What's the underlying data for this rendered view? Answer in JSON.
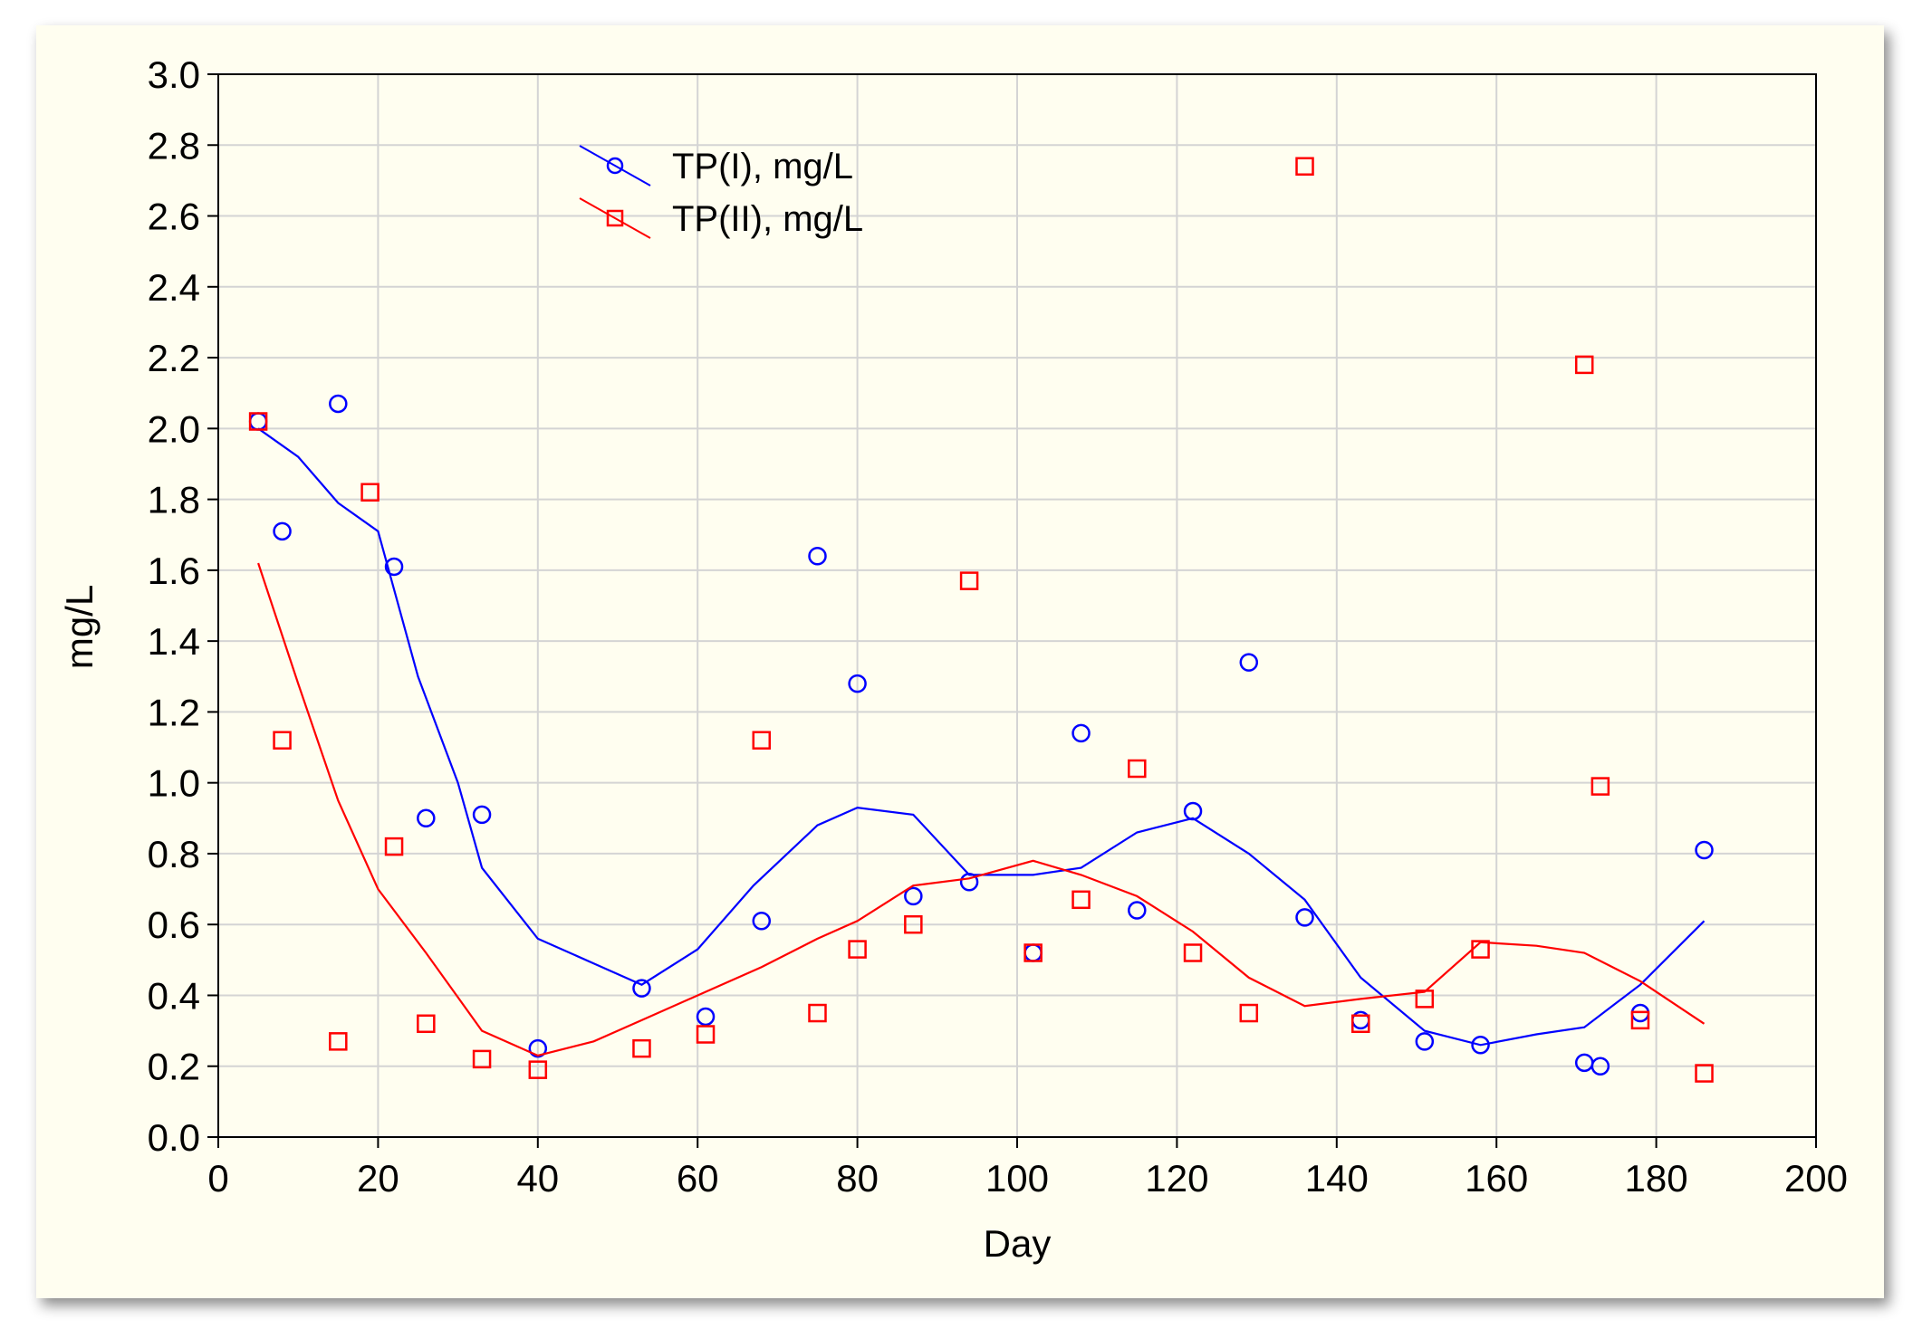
{
  "chart_data": {
    "type": "scatter",
    "title": "",
    "xlabel": "Day",
    "ylabel": "mg/L",
    "xlim": [
      0,
      200
    ],
    "ylim": [
      0.0,
      3.0
    ],
    "x_ticks": [
      "0",
      "20",
      "40",
      "60",
      "80",
      "100",
      "120",
      "140",
      "160",
      "180",
      "200"
    ],
    "y_ticks": [
      "0.0",
      "0.2",
      "0.4",
      "0.6",
      "0.8",
      "1.0",
      "1.2",
      "1.4",
      "1.6",
      "1.8",
      "2.0",
      "2.2",
      "2.4",
      "2.6",
      "2.8",
      "3.0"
    ],
    "grid": true,
    "legend_position": "top-left",
    "series": [
      {
        "name": "TP(I), mg/L",
        "marker": "circle",
        "color": "#0000ff",
        "points": [
          [
            5,
            2.02
          ],
          [
            8,
            1.71
          ],
          [
            15,
            2.07
          ],
          [
            22,
            1.61
          ],
          [
            26,
            0.9
          ],
          [
            33,
            0.91
          ],
          [
            40,
            0.25
          ],
          [
            53,
            0.42
          ],
          [
            61,
            0.34
          ],
          [
            68,
            0.61
          ],
          [
            75,
            1.64
          ],
          [
            80,
            1.28
          ],
          [
            87,
            0.68
          ],
          [
            94,
            0.72
          ],
          [
            102,
            0.52
          ],
          [
            108,
            1.14
          ],
          [
            115,
            0.64
          ],
          [
            122,
            0.92
          ],
          [
            129,
            1.34
          ],
          [
            136,
            0.62
          ],
          [
            143,
            0.33
          ],
          [
            151,
            0.27
          ],
          [
            158,
            0.26
          ],
          [
            171,
            0.21
          ],
          [
            173,
            0.2
          ],
          [
            178,
            0.35
          ],
          [
            186,
            0.81
          ]
        ],
        "smooth": [
          [
            5,
            2.0
          ],
          [
            10,
            1.92
          ],
          [
            15,
            1.79
          ],
          [
            20,
            1.71
          ],
          [
            25,
            1.3
          ],
          [
            30,
            1.0
          ],
          [
            33,
            0.76
          ],
          [
            40,
            0.56
          ],
          [
            47,
            0.49
          ],
          [
            53,
            0.43
          ],
          [
            60,
            0.53
          ],
          [
            67,
            0.71
          ],
          [
            75,
            0.88
          ],
          [
            80,
            0.93
          ],
          [
            87,
            0.91
          ],
          [
            94,
            0.74
          ],
          [
            102,
            0.74
          ],
          [
            108,
            0.76
          ],
          [
            115,
            0.86
          ],
          [
            122,
            0.9
          ],
          [
            129,
            0.8
          ],
          [
            136,
            0.67
          ],
          [
            143,
            0.45
          ],
          [
            151,
            0.3
          ],
          [
            158,
            0.26
          ],
          [
            165,
            0.29
          ],
          [
            171,
            0.31
          ],
          [
            178,
            0.43
          ],
          [
            186,
            0.61
          ]
        ]
      },
      {
        "name": "TP(II), mg/L",
        "marker": "square",
        "color": "#ff0000",
        "points": [
          [
            5,
            2.02
          ],
          [
            8,
            1.12
          ],
          [
            15,
            0.27
          ],
          [
            19,
            1.82
          ],
          [
            22,
            0.82
          ],
          [
            26,
            0.32
          ],
          [
            33,
            0.22
          ],
          [
            40,
            0.19
          ],
          [
            53,
            0.25
          ],
          [
            61,
            0.29
          ],
          [
            68,
            1.12
          ],
          [
            75,
            0.35
          ],
          [
            80,
            0.53
          ],
          [
            87,
            0.6
          ],
          [
            94,
            1.57
          ],
          [
            102,
            0.52
          ],
          [
            108,
            0.67
          ],
          [
            115,
            1.04
          ],
          [
            122,
            0.52
          ],
          [
            129,
            0.35
          ],
          [
            136,
            2.74
          ],
          [
            143,
            0.32
          ],
          [
            151,
            0.39
          ],
          [
            158,
            0.53
          ],
          [
            171,
            2.18
          ],
          [
            173,
            0.99
          ],
          [
            178,
            0.33
          ],
          [
            186,
            0.18
          ]
        ],
        "smooth": [
          [
            5,
            1.62
          ],
          [
            10,
            1.28
          ],
          [
            15,
            0.95
          ],
          [
            20,
            0.7
          ],
          [
            26,
            0.52
          ],
          [
            33,
            0.3
          ],
          [
            40,
            0.23
          ],
          [
            47,
            0.27
          ],
          [
            53,
            0.33
          ],
          [
            61,
            0.41
          ],
          [
            68,
            0.48
          ],
          [
            75,
            0.56
          ],
          [
            80,
            0.61
          ],
          [
            87,
            0.71
          ],
          [
            94,
            0.73
          ],
          [
            102,
            0.78
          ],
          [
            108,
            0.74
          ],
          [
            115,
            0.68
          ],
          [
            122,
            0.58
          ],
          [
            129,
            0.45
          ],
          [
            136,
            0.37
          ],
          [
            143,
            0.39
          ],
          [
            151,
            0.41
          ],
          [
            158,
            0.55
          ],
          [
            165,
            0.54
          ],
          [
            171,
            0.52
          ],
          [
            178,
            0.44
          ],
          [
            186,
            0.32
          ]
        ]
      }
    ]
  }
}
